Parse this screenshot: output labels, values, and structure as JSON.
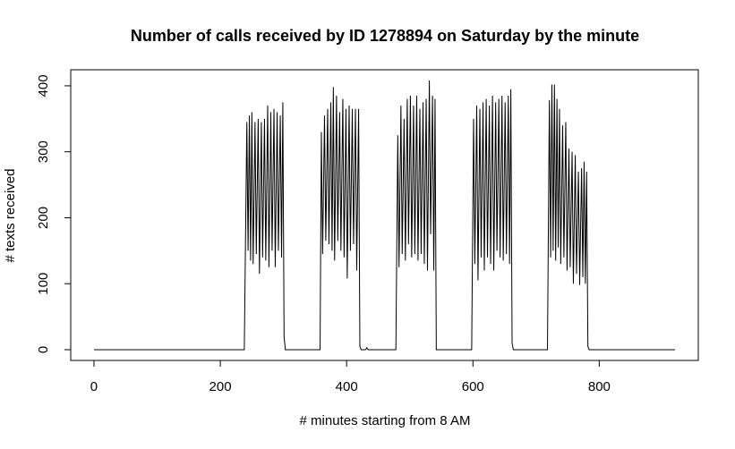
{
  "chart_data": {
    "type": "line",
    "title": "Number of calls received by ID 1278894 on Saturday by the minute",
    "x_label": "# minutes starting from 8 AM",
    "y_label": "# texts received",
    "color": "#000000",
    "x": [
      0,
      238,
      242,
      244,
      246,
      248,
      250,
      252,
      255,
      257,
      260,
      262,
      265,
      267,
      270,
      272,
      275,
      277,
      280,
      282,
      285,
      287,
      290,
      292,
      295,
      297,
      299,
      301,
      303,
      358,
      360,
      362,
      365,
      367,
      370,
      372,
      375,
      377,
      379,
      381,
      384,
      386,
      389,
      391,
      394,
      396,
      399,
      401,
      404,
      406,
      409,
      411,
      414,
      416,
      419,
      421,
      423,
      430,
      432,
      434,
      478,
      481,
      483,
      486,
      488,
      491,
      493,
      496,
      498,
      501,
      503,
      506,
      508,
      511,
      513,
      516,
      518,
      521,
      523,
      526,
      528,
      531,
      533,
      536,
      538,
      540,
      542,
      598,
      601,
      603,
      606,
      608,
      611,
      613,
      616,
      618,
      621,
      623,
      626,
      628,
      631,
      633,
      636,
      638,
      641,
      643,
      646,
      648,
      651,
      653,
      656,
      658,
      660,
      662,
      664,
      718,
      721,
      723,
      725,
      727,
      729,
      731,
      733,
      735,
      737,
      739,
      742,
      744,
      747,
      749,
      752,
      754,
      757,
      759,
      762,
      764,
      767,
      769,
      772,
      774,
      776,
      778,
      780,
      782,
      784,
      920
    ],
    "values": [
      0,
      0,
      345,
      150,
      355,
      135,
      360,
      130,
      345,
      145,
      350,
      115,
      345,
      140,
      350,
      135,
      370,
      125,
      360,
      150,
      365,
      125,
      360,
      150,
      355,
      140,
      375,
      20,
      0,
      0,
      330,
      145,
      355,
      165,
      365,
      160,
      375,
      150,
      398,
      135,
      385,
      165,
      360,
      150,
      380,
      140,
      365,
      108,
      370,
      150,
      365,
      160,
      365,
      120,
      365,
      5,
      0,
      0,
      3,
      0,
      0,
      325,
      125,
      370,
      145,
      350,
      135,
      380,
      160,
      385,
      140,
      370,
      145,
      385,
      135,
      365,
      145,
      375,
      130,
      380,
      120,
      408,
      175,
      385,
      120,
      380,
      0,
      0,
      350,
      130,
      370,
      105,
      365,
      140,
      375,
      120,
      380,
      140,
      370,
      130,
      385,
      120,
      375,
      150,
      380,
      140,
      385,
      135,
      375,
      145,
      385,
      130,
      395,
      10,
      0,
      0,
      378,
      140,
      402,
      150,
      402,
      135,
      380,
      155,
      365,
      130,
      340,
      140,
      345,
      120,
      305,
      125,
      300,
      100,
      295,
      115,
      270,
      98,
      275,
      110,
      285,
      100,
      270,
      5,
      0,
      0
    ],
    "xlim": [
      -36.8,
      956.8
    ],
    "ylim": [
      -16.32,
      424.32
    ],
    "xticks": [
      0,
      200,
      400,
      600,
      800
    ],
    "yticks": [
      0,
      100,
      200,
      300,
      400
    ]
  }
}
